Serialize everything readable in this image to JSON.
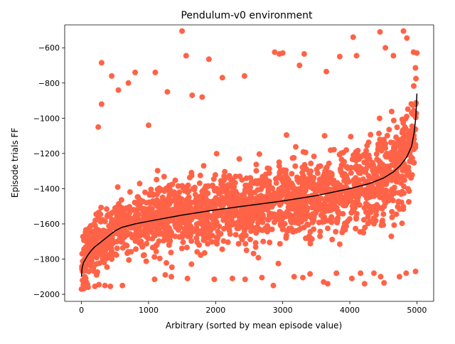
{
  "chart_data": {
    "type": "scatter",
    "title": "Pendulum-v0 environment",
    "xlabel": "Arbitrary (sorted by mean episode value)",
    "ylabel": "Episode trials FF",
    "xlim": [
      -250,
      5250
    ],
    "ylim": [
      -2040,
      -470
    ],
    "x_ticks": [
      0,
      1000,
      2000,
      3000,
      4000,
      5000
    ],
    "x_tick_labels": [
      "0",
      "1000",
      "2000",
      "3000",
      "4000",
      "5000"
    ],
    "y_ticks": [
      -2000,
      -1800,
      -1600,
      -1400,
      -1200,
      -1000,
      -800,
      -600
    ],
    "y_tick_labels": [
      "−2000",
      "−1800",
      "−1600",
      "−1400",
      "−1200",
      "−1000",
      "−800",
      "−600"
    ],
    "grid": false,
    "legend": "none",
    "colors": {
      "scatter": "#ff6347",
      "mean_line": "#000000"
    },
    "series": [
      {
        "kind": "mean_line",
        "x": [
          0,
          10,
          30,
          60,
          100,
          150,
          200,
          300,
          400,
          500,
          600,
          700,
          800,
          1000,
          1500,
          2000,
          2500,
          3000,
          3500,
          4000,
          4300,
          4500,
          4650,
          4750,
          4850,
          4920,
          4960,
          4985,
          5000
        ],
        "y": [
          -1900,
          -1850,
          -1820,
          -1800,
          -1775,
          -1750,
          -1730,
          -1700,
          -1670,
          -1640,
          -1620,
          -1610,
          -1600,
          -1585,
          -1550,
          -1520,
          -1495,
          -1470,
          -1440,
          -1400,
          -1370,
          -1340,
          -1305,
          -1270,
          -1220,
          -1160,
          -1080,
          -990,
          -860
        ]
      },
      {
        "kind": "scatter_outliers",
        "x": [
          1500,
          1560,
          1900,
          2100,
          2430,
          2880,
          2950,
          3000,
          3250,
          3320,
          3650,
          3850,
          4050,
          4100,
          4450,
          4530,
          4650,
          4800,
          4850,
          4950,
          5000,
          300,
          450,
          550,
          700,
          800,
          1100,
          1280,
          1650,
          300,
          250,
          1800,
          1000
        ],
        "y": [
          -505,
          -645,
          -665,
          -770,
          -760,
          -625,
          -635,
          -630,
          -700,
          -635,
          -735,
          -650,
          -540,
          -645,
          -510,
          -600,
          -645,
          -505,
          -545,
          -625,
          -630,
          -685,
          -760,
          -840,
          -800,
          -740,
          -740,
          -850,
          -870,
          -920,
          -1050,
          -880,
          -1040
        ]
      },
      {
        "kind": "scatter_low",
        "x": [
          0,
          40,
          100,
          200,
          260,
          350,
          430,
          610,
          1090,
          1250,
          1340,
          1580,
          1980,
          2250,
          2440,
          2690,
          2860,
          3170,
          3300,
          3610,
          3670,
          3800,
          4030,
          4160,
          4220,
          4360,
          4460,
          4510,
          4740,
          4840,
          4980
        ],
        "y": [
          -1970,
          -1965,
          -1960,
          -1955,
          -1945,
          -1950,
          -1955,
          -1950,
          -1915,
          -1890,
          -1900,
          -1910,
          -1915,
          -1910,
          -1915,
          -1905,
          -1950,
          -1900,
          -1905,
          -1930,
          -1940,
          -1880,
          -1910,
          -1880,
          -1940,
          -1880,
          -1900,
          -1935,
          -1900,
          -1880,
          -1870
        ]
      }
    ]
  }
}
